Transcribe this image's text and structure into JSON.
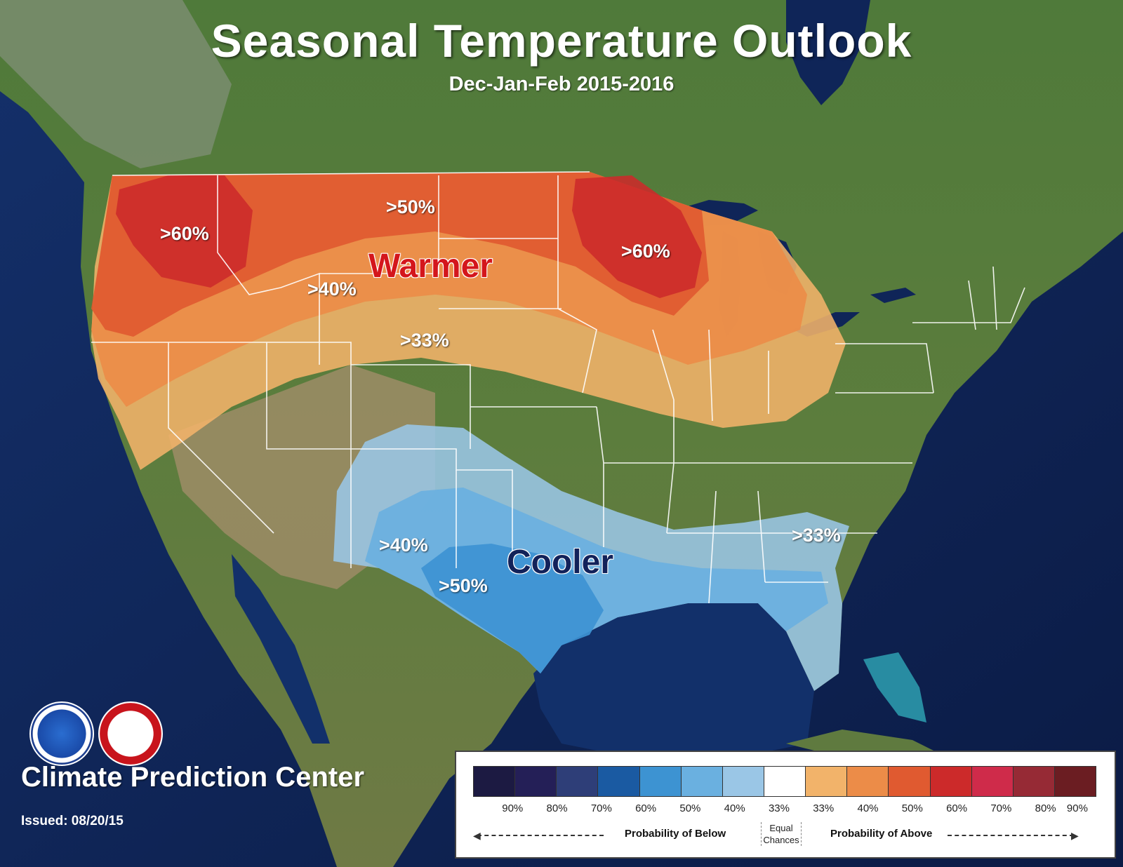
{
  "title": "Seasonal Temperature Outlook",
  "subtitle": "Dec-Jan-Feb 2015-2016",
  "regions": {
    "warmer": "Warmer",
    "cooler": "Cooler"
  },
  "contour_labels": {
    "nw_60": ">60%",
    "north_50": ">50%",
    "ne_60": ">60%",
    "west_40": ">40%",
    "central_33": ">33%",
    "se_33": ">33%",
    "sw_40": ">40%",
    "tx_50": ">50%"
  },
  "organization": "Climate Prediction Center",
  "issued": "Issued: 08/20/15",
  "logos": [
    "noaa-logo",
    "nws-logo"
  ],
  "legend": {
    "colors": [
      "#1c1a42",
      "#241f57",
      "#2e3e78",
      "#1a5aa2",
      "#3d93d2",
      "#6ab0e0",
      "#9ac6e6",
      "#ffffff",
      "#f2b36a",
      "#ec8c48",
      "#e05a30",
      "#cc2a2a",
      "#cf2b4a",
      "#962a35",
      "#6b1d22"
    ],
    "ticks": [
      "90%",
      "80%",
      "70%",
      "60%",
      "50%",
      "40%",
      "33%",
      "33%",
      "40%",
      "50%",
      "60%",
      "70%",
      "80%",
      "90%"
    ],
    "below_label": "Probability of Below",
    "above_label": "Probability of Above",
    "equal_line1": "Equal",
    "equal_line2": "Chances"
  }
}
